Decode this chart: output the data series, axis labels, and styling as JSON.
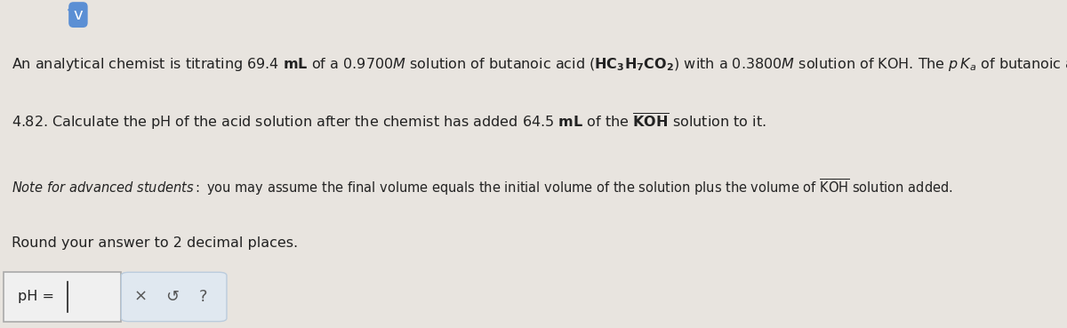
{
  "bg_color": "#e8e4df",
  "text_color": "#222222",
  "line1": "An analytical chemist is titrating 69.4 mL of a 0.9700 ",
  "line1_bold_part": "M",
  "formula": "(HC₃H₇CO₂)",
  "line2_prefix": " solution of butanoic acid ",
  "line2_suffix": " with a 0.3800 ",
  "line2_bold2": "M",
  "line2_end": " solution of KOH. The  p K",
  "line2_sub": "a",
  "line2_final": " of butanoic acid is",
  "line3": "4.82. Calculate the pH of the acid solution after the chemist has added 64.5 mL of the KOH solution to it.",
  "line4": "Note for advanced students: you may assume the final volume equals the initial volume of the solution plus the volume of KOH solution added.",
  "line5": "Round your answer to 2 decimal places.",
  "input_label": "pH = ",
  "button_x_label": "×",
  "button_undo_label": "↺",
  "button_help_label": "?",
  "font_size_main": 11.5,
  "font_size_note": 10.5,
  "font_size_bottom": 11.0,
  "input_box_color": "#f0f0f0",
  "button_box_color": "#e0e8f0",
  "arrow_color": "#5b8fd4",
  "arrow_bg": "#5b8fd4"
}
